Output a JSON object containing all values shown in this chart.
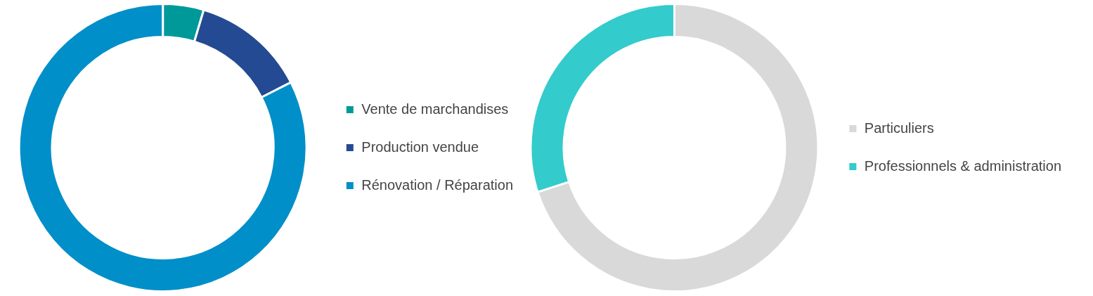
{
  "chart_data": [
    {
      "type": "donut",
      "categories": [
        "Vente de marchandises",
        "Production vendue",
        "Rénovation / Réparation"
      ],
      "values": [
        4.6,
        12.9,
        82.5
      ],
      "colors": [
        "#00999a",
        "#244a93",
        "#008fc8"
      ],
      "legend": "right"
    },
    {
      "type": "donut",
      "categories": [
        "Particuliers",
        "Professionnels & administration"
      ],
      "values": [
        70,
        30
      ],
      "colors": [
        "#d9d9d9",
        "#33cbcc"
      ],
      "legend": "right"
    }
  ]
}
